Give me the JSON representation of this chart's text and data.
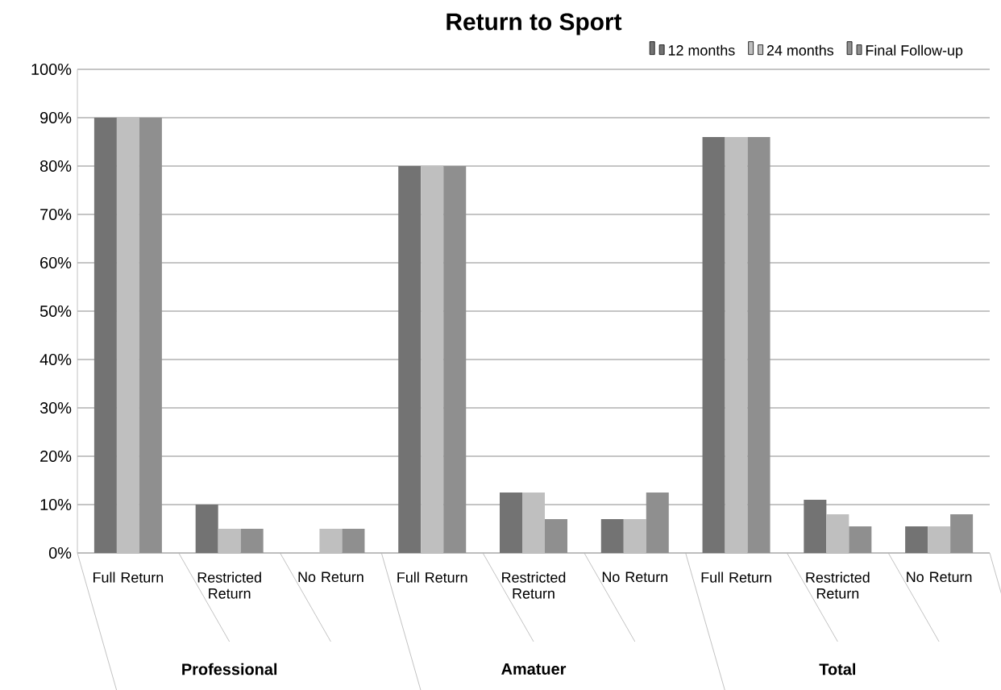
{
  "chart_data": {
    "type": "bar",
    "title": "Return to Sport",
    "categories": [
      "Full Return",
      "Restricted Return",
      "No Return",
      "Full Return",
      "Restricted Return",
      "No Return",
      "Full Return",
      "Restricted Return",
      "No Return"
    ],
    "series": [
      {
        "name": "12 months",
        "color": "#737373",
        "values": [
          90,
          10,
          0,
          80,
          12.5,
          7,
          86,
          11,
          5.5
        ]
      },
      {
        "name": "24 months",
        "color": "#bfbfbf",
        "values": [
          90,
          5,
          5,
          80,
          12.5,
          7,
          86,
          8,
          5.5
        ]
      },
      {
        "name": "Final Follow-up",
        "color": "#8f8f8f",
        "values": [
          90,
          5,
          5,
          80,
          7,
          12.5,
          86,
          5.5,
          8
        ]
      }
    ],
    "ylim": [
      0,
      100
    ],
    "yticks": [
      {
        "value": 0,
        "label": "0%"
      },
      {
        "value": 10,
        "label": "10%"
      },
      {
        "value": 20,
        "label": "20%"
      },
      {
        "value": 30,
        "label": "30%"
      },
      {
        "value": 40,
        "label": "40%"
      },
      {
        "value": 50,
        "label": "50%"
      },
      {
        "value": 60,
        "label": "60%"
      },
      {
        "value": 70,
        "label": "70%"
      },
      {
        "value": 80,
        "label": "80%"
      },
      {
        "value": 90,
        "label": "90%"
      },
      {
        "value": 100,
        "label": "100%"
      }
    ],
    "annotations": [
      "Professional",
      "Amatuer",
      "Total"
    ],
    "grid": "y",
    "legend": "top right"
  }
}
